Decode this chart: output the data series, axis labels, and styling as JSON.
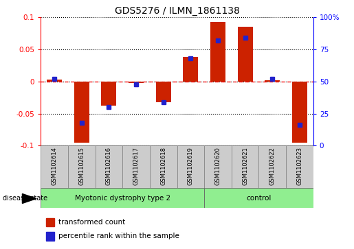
{
  "title": "GDS5276 / ILMN_1861138",
  "samples": [
    "GSM1102614",
    "GSM1102615",
    "GSM1102616",
    "GSM1102617",
    "GSM1102618",
    "GSM1102619",
    "GSM1102620",
    "GSM1102621",
    "GSM1102622",
    "GSM1102623"
  ],
  "transformed_count": [
    0.003,
    -0.095,
    -0.038,
    -0.002,
    -0.032,
    0.038,
    0.093,
    0.085,
    0.002,
    -0.095
  ],
  "percentile_rank": [
    52,
    18,
    30,
    48,
    34,
    68,
    82,
    84,
    52,
    16
  ],
  "groups": [
    {
      "label": "Myotonic dystrophy type 2",
      "start": 0,
      "end": 6,
      "color": "#90EE90"
    },
    {
      "label": "control",
      "start": 6,
      "end": 10,
      "color": "#90EE90"
    }
  ],
  "ylim_left": [
    -0.1,
    0.1
  ],
  "ylim_right": [
    0,
    100
  ],
  "yticks_left": [
    -0.1,
    -0.05,
    0,
    0.05,
    0.1
  ],
  "yticks_right": [
    0,
    25,
    50,
    75,
    100
  ],
  "bar_color": "#CC2200",
  "dot_color": "#2222CC",
  "background_color": "#FFFFFF"
}
